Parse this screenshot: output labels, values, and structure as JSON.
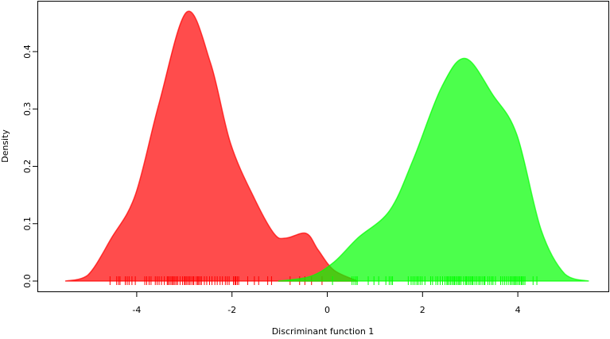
{
  "chart_data": {
    "type": "area",
    "title": "",
    "xlabel": "Discriminant function 1",
    "ylabel": "Density",
    "xlim": [
      -5.9,
      6.0
    ],
    "ylim": [
      -0.02,
      0.49
    ],
    "xticks": [
      -4,
      -2,
      0,
      2,
      4
    ],
    "yticks": [
      0.0,
      0.1,
      0.2,
      0.3,
      0.4
    ],
    "ytick_labels": [
      "0.0",
      "0.1",
      "0.2",
      "0.3",
      "0.4"
    ],
    "grid": false,
    "legend": "none",
    "series": [
      {
        "color": "#ff0000",
        "opacity": 0.7,
        "x": [
          -5.5,
          -5.03,
          -4.53,
          -4.03,
          -3.53,
          -2.95,
          -2.45,
          -2.03,
          -1.53,
          -1.11,
          -0.86,
          -0.44,
          -0.19,
          0.14,
          0.64
        ],
        "y": [
          0.0,
          0.01,
          0.075,
          0.15,
          0.31,
          0.469,
          0.38,
          0.24,
          0.144,
          0.082,
          0.075,
          0.083,
          0.054,
          0.019,
          0.0
        ],
        "rug": [
          -4.56,
          -4.42,
          -4.38,
          -4.35,
          -4.24,
          -4.2,
          -4.16,
          -4.1,
          -4.03,
          -3.83,
          -3.79,
          -3.74,
          -3.7,
          -3.61,
          -3.57,
          -3.53,
          -3.48,
          -3.42,
          -3.36,
          -3.34,
          -3.31,
          -3.28,
          -3.25,
          -3.23,
          -3.2,
          -3.17,
          -3.14,
          -3.09,
          -3.04,
          -3.0,
          -2.98,
          -2.95,
          -2.92,
          -2.89,
          -2.86,
          -2.82,
          -2.8,
          -2.75,
          -2.72,
          -2.7,
          -2.67,
          -2.64,
          -2.58,
          -2.53,
          -2.47,
          -2.42,
          -2.36,
          -2.31,
          -2.25,
          -2.2,
          -2.14,
          -2.1,
          -2.06,
          -1.97,
          -1.94,
          -1.92,
          -1.89,
          -1.86,
          -1.67,
          -1.53,
          -1.44,
          -1.25,
          -1.17,
          -0.78,
          -0.58,
          -0.47,
          -0.33,
          -0.11
        ]
      },
      {
        "color": "#00ff00",
        "opacity": 0.7,
        "x": [
          -1.03,
          -0.36,
          0.14,
          0.64,
          1.31,
          1.81,
          2.4,
          2.9,
          3.48,
          3.98,
          4.49,
          4.99,
          5.49
        ],
        "y": [
          0.0,
          0.008,
          0.033,
          0.075,
          0.123,
          0.213,
          0.338,
          0.388,
          0.324,
          0.255,
          0.089,
          0.012,
          0.0
        ],
        "rug": [
          0.11,
          0.52,
          0.56,
          0.6,
          0.63,
          0.86,
          0.98,
          1.08,
          1.23,
          1.3,
          1.34,
          1.37,
          1.7,
          1.76,
          1.8,
          1.84,
          1.88,
          1.91,
          1.95,
          1.99,
          2.05,
          2.17,
          2.21,
          2.28,
          2.32,
          2.37,
          2.42,
          2.47,
          2.51,
          2.53,
          2.56,
          2.59,
          2.62,
          2.65,
          2.67,
          2.7,
          2.73,
          2.76,
          2.78,
          2.81,
          2.86,
          2.9,
          2.92,
          2.95,
          2.98,
          3.01,
          3.04,
          3.06,
          3.1,
          3.14,
          3.18,
          3.21,
          3.25,
          3.29,
          3.31,
          3.37,
          3.41,
          3.45,
          3.48,
          3.53,
          3.64,
          3.68,
          3.72,
          3.76,
          3.8,
          3.84,
          3.87,
          3.9,
          3.93,
          3.95,
          3.98,
          4.01,
          4.04,
          4.07,
          4.09,
          4.12,
          4.15,
          4.32,
          4.4
        ]
      }
    ]
  }
}
